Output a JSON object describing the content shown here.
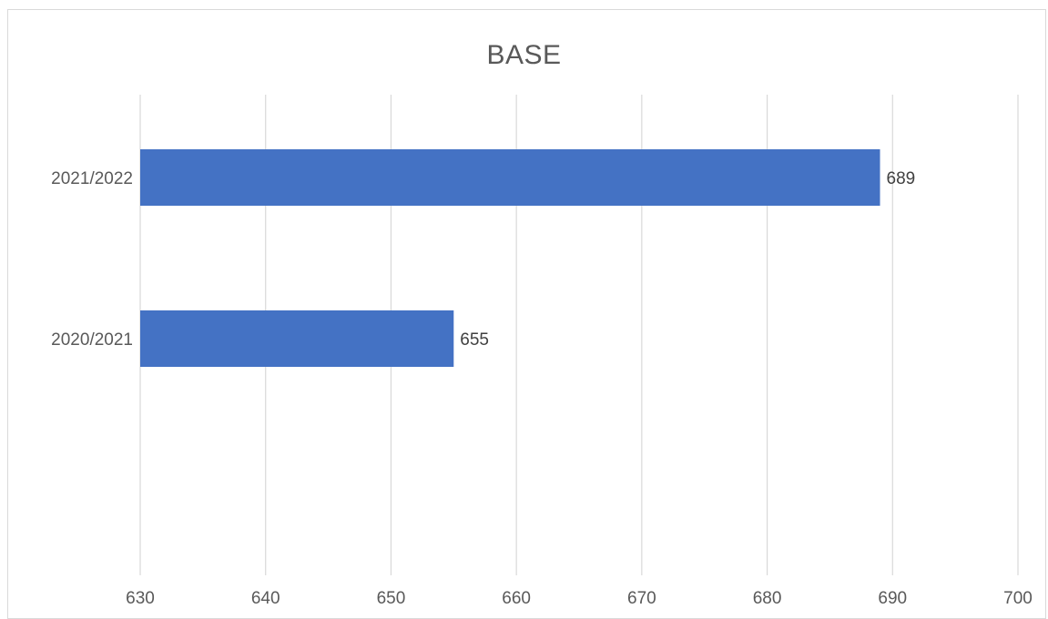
{
  "chart_data": {
    "type": "bar",
    "orientation": "horizontal",
    "title": "BASE",
    "categories": [
      "2021/2022",
      "2020/2021"
    ],
    "values": [
      689,
      655
    ],
    "xlim": [
      630,
      700
    ],
    "x_ticks": [
      "630",
      "640",
      "650",
      "660",
      "670",
      "680",
      "690",
      "700"
    ],
    "xlabel": "",
    "ylabel": "",
    "grid": "vertical",
    "legend": "none",
    "data_labels": [
      "689",
      "655"
    ],
    "colors": {
      "bar": "#4472C4",
      "grid": "#d9d9d9",
      "text": "#595959",
      "label": "#404040"
    }
  }
}
